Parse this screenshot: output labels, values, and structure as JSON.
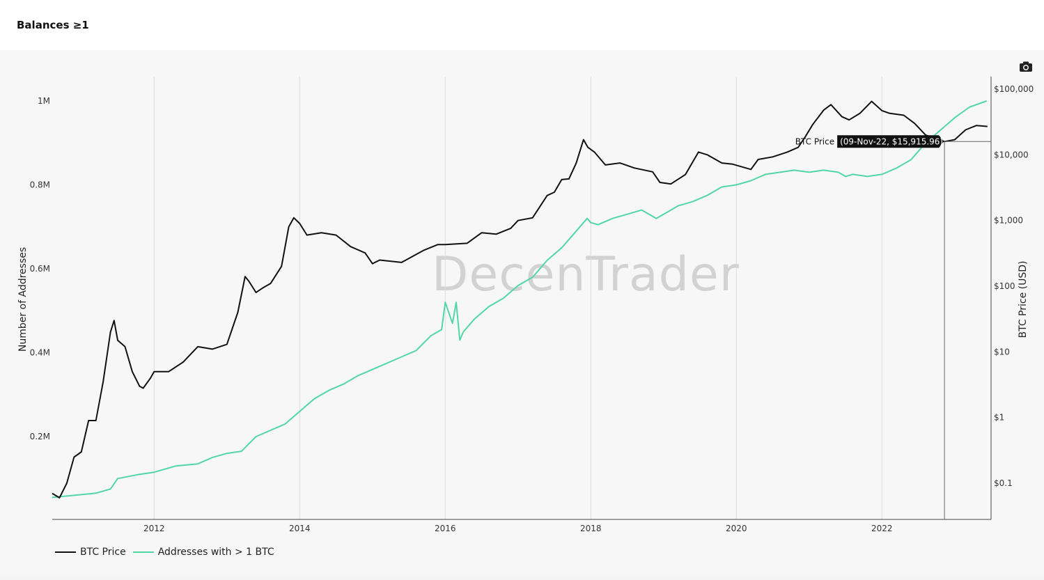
{
  "header": {
    "title": "Balances ≥1"
  },
  "watermark": {
    "text": "DecenTrader"
  },
  "tooltip": {
    "series": "BTC Price",
    "value": "(09-Nov-22, $15,915.96)"
  },
  "legend": [
    {
      "label": "BTC Price",
      "color": "#111111"
    },
    {
      "label": "Addresses with > 1 BTC",
      "color": "#52d6a6"
    }
  ],
  "chart_data": {
    "type": "line",
    "title": "Balances ≥1",
    "xlabel": "",
    "ylabel": "Number of Addresses",
    "y2label": "BTC Price (USD)",
    "x_ticks": [
      "2012",
      "2014",
      "2016",
      "2018",
      "2020",
      "2022"
    ],
    "y_ticks": [
      "0.2M",
      "0.4M",
      "0.6M",
      "0.8M",
      "1M"
    ],
    "y2_ticks": [
      "$0.1",
      "$1",
      "$10",
      "$100",
      "$1,000",
      "$10,000",
      "$100,000"
    ],
    "y2_scale": "log",
    "grid": true,
    "legend_position": "bottom-left",
    "series": [
      {
        "name": "BTC Price",
        "axis": "right",
        "color": "#111111",
        "x": [
          2010.6,
          2010.7,
          2010.8,
          2010.9,
          2011.0,
          2011.1,
          2011.2,
          2011.3,
          2011.4,
          2011.45,
          2011.5,
          2011.6,
          2011.7,
          2011.8,
          2011.85,
          2011.95,
          2012.0,
          2012.2,
          2012.4,
          2012.6,
          2012.8,
          2013.0,
          2013.15,
          2013.25,
          2013.3,
          2013.4,
          2013.5,
          2013.6,
          2013.75,
          2013.85,
          2013.92,
          2014.0,
          2014.1,
          2014.3,
          2014.5,
          2014.7,
          2014.9,
          2015.0,
          2015.1,
          2015.4,
          2015.7,
          2015.9,
          2016.0,
          2016.3,
          2016.5,
          2016.7,
          2016.9,
          2017.0,
          2017.2,
          2017.4,
          2017.5,
          2017.6,
          2017.7,
          2017.8,
          2017.9,
          2017.96,
          2018.05,
          2018.2,
          2018.4,
          2018.6,
          2018.85,
          2018.95,
          2019.1,
          2019.3,
          2019.48,
          2019.6,
          2019.8,
          2019.95,
          2020.2,
          2020.3,
          2020.5,
          2020.7,
          2020.85,
          2020.95,
          2021.05,
          2021.2,
          2021.3,
          2021.45,
          2021.55,
          2021.7,
          2021.86,
          2022.0,
          2022.1,
          2022.3,
          2022.45,
          2022.6,
          2022.86,
          2023.0,
          2023.15,
          2023.3,
          2023.45
        ],
        "values": [
          0.07,
          0.06,
          0.1,
          0.25,
          0.3,
          0.9,
          0.9,
          3.5,
          20,
          30,
          15,
          12,
          5,
          3,
          2.8,
          4,
          5,
          5,
          7,
          12,
          11,
          13,
          40,
          140,
          120,
          80,
          95,
          110,
          200,
          800,
          1100,
          900,
          600,
          650,
          600,
          400,
          320,
          220,
          250,
          230,
          350,
          430,
          430,
          450,
          650,
          620,
          760,
          1000,
          1100,
          2400,
          2700,
          4200,
          4300,
          7500,
          17000,
          13000,
          11000,
          7000,
          7500,
          6300,
          5500,
          3800,
          3600,
          5000,
          11000,
          10000,
          7500,
          7200,
          6000,
          8500,
          9300,
          11000,
          13000,
          19000,
          29000,
          48000,
          58000,
          38000,
          34000,
          43000,
          65000,
          47000,
          43000,
          40000,
          30000,
          20000,
          15915.96,
          17000,
          24000,
          28000,
          27000
        ]
      },
      {
        "name": "Addresses with > 1 BTC",
        "axis": "left",
        "color": "#52d6a6",
        "x": [
          2010.6,
          2010.9,
          2011.2,
          2011.4,
          2011.5,
          2011.8,
          2012.0,
          2012.3,
          2012.6,
          2012.8,
          2013.0,
          2013.2,
          2013.4,
          2013.6,
          2013.8,
          2014.0,
          2014.2,
          2014.4,
          2014.6,
          2014.8,
          2015.0,
          2015.2,
          2015.4,
          2015.6,
          2015.8,
          2015.95,
          2016.0,
          2016.1,
          2016.15,
          2016.2,
          2016.25,
          2016.4,
          2016.6,
          2016.8,
          2017.0,
          2017.2,
          2017.4,
          2017.6,
          2017.8,
          2017.95,
          2018.0,
          2018.1,
          2018.3,
          2018.5,
          2018.7,
          2018.9,
          2019.0,
          2019.2,
          2019.4,
          2019.6,
          2019.8,
          2020.0,
          2020.2,
          2020.4,
          2020.6,
          2020.8,
          2021.0,
          2021.2,
          2021.4,
          2021.5,
          2021.6,
          2021.8,
          2022.0,
          2022.2,
          2022.4,
          2022.6,
          2022.8,
          2023.0,
          2023.2,
          2023.44
        ],
        "values": [
          55000,
          60000,
          65000,
          75000,
          100000,
          110000,
          115000,
          130000,
          135000,
          150000,
          160000,
          165000,
          200000,
          215000,
          230000,
          260000,
          290000,
          310000,
          325000,
          345000,
          360000,
          375000,
          390000,
          405000,
          440000,
          455000,
          520000,
          470000,
          520000,
          430000,
          450000,
          480000,
          510000,
          530000,
          560000,
          580000,
          620000,
          650000,
          690000,
          720000,
          710000,
          705000,
          720000,
          730000,
          740000,
          720000,
          730000,
          750000,
          760000,
          775000,
          795000,
          800000,
          810000,
          825000,
          830000,
          835000,
          830000,
          835000,
          830000,
          820000,
          825000,
          820000,
          825000,
          840000,
          860000,
          900000,
          930000,
          960000,
          985000,
          1000000
        ]
      }
    ]
  }
}
